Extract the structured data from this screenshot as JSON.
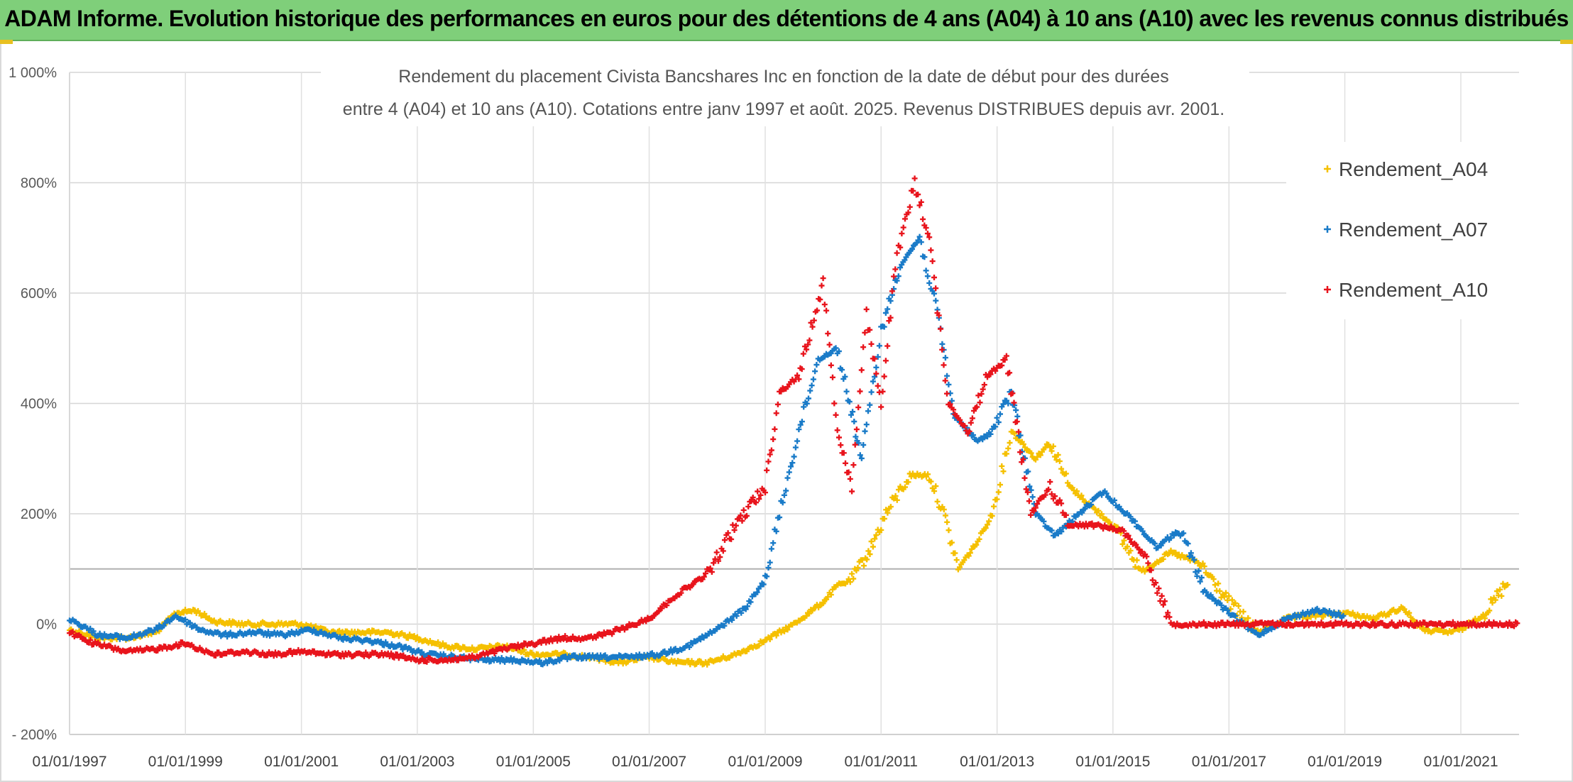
{
  "banner": {
    "title": "ADAM Informe. Evolution historique des performances en euros pour des détentions de 4 ans (A04) à 10 ans (A10) avec les revenus connus distribués"
  },
  "chart_data": {
    "type": "scatter",
    "title_line1": "Rendement du placement Civista Bancshares Inc en fonction de la date de début pour des durées",
    "title_line2": "entre 4 (A04) et 10 ans (A10). Cotations entre janv 1997 et août. 2025. Revenus DISTRIBUES depuis avr. 2001.",
    "xlabel": "",
    "ylabel": "",
    "x_range": [
      "1997-01-01",
      "2022-01-01"
    ],
    "ylim": [
      -200,
      1000
    ],
    "y_ticks": [
      -200,
      0,
      200,
      400,
      600,
      800,
      1000
    ],
    "y_tick_labels": [
      "- 200%",
      "0%",
      "200%",
      "400%",
      "600%",
      "800%",
      "1 000%"
    ],
    "x_ticks": [
      "1997-01-01",
      "1999-01-01",
      "2001-01-01",
      "2003-01-01",
      "2005-01-01",
      "2007-01-01",
      "2009-01-01",
      "2011-01-01",
      "2013-01-01",
      "2015-01-01",
      "2017-01-01",
      "2019-01-01",
      "2021-01-01"
    ],
    "x_tick_labels": [
      "01/01/1997",
      "01/01/1999",
      "01/01/2001",
      "01/01/2003",
      "01/01/2005",
      "01/01/2007",
      "01/01/2009",
      "01/01/2011",
      "01/01/2013",
      "01/01/2015",
      "01/01/2017",
      "01/01/2019",
      "01/01/2021"
    ],
    "reference_line_y": 100,
    "grid": true,
    "legend_position": "top-right",
    "series": [
      {
        "name": "Rendement_A04",
        "color": "#f5c000",
        "x": [
          "1997-01-01",
          "1997-07-01",
          "1998-01-01",
          "1998-07-01",
          "1998-11-01",
          "1999-03-01",
          "1999-07-01",
          "2000-01-01",
          "2000-07-01",
          "2001-01-01",
          "2001-07-01",
          "2002-01-01",
          "2002-07-01",
          "2003-01-01",
          "2003-07-01",
          "2004-01-01",
          "2004-07-01",
          "2005-01-01",
          "2005-07-01",
          "2006-01-01",
          "2006-07-01",
          "2007-01-01",
          "2007-07-01",
          "2008-01-01",
          "2008-07-01",
          "2009-01-01",
          "2009-07-01",
          "2010-01-01",
          "2010-04-01",
          "2010-07-01",
          "2010-11-01",
          "2011-02-01",
          "2011-07-01",
          "2011-11-01",
          "2012-02-01",
          "2012-05-01",
          "2012-09-01",
          "2012-12-01",
          "2013-04-01",
          "2013-09-01",
          "2013-12-01",
          "2014-04-01",
          "2014-09-01",
          "2015-01-01",
          "2015-07-01",
          "2016-01-01",
          "2016-07-01",
          "2017-01-01",
          "2017-07-01",
          "2018-01-01",
          "2018-07-01",
          "2019-01-01",
          "2019-07-01",
          "2020-01-01",
          "2020-05-01",
          "2020-10-01",
          "2021-01-01",
          "2021-06-01",
          "2021-11-01"
        ],
        "y": [
          -10,
          -25,
          -25,
          -15,
          20,
          25,
          5,
          0,
          0,
          0,
          -15,
          -15,
          -15,
          -25,
          -40,
          -45,
          -40,
          -55,
          -55,
          -60,
          -70,
          -60,
          -70,
          -70,
          -55,
          -30,
          0,
          40,
          70,
          80,
          140,
          200,
          270,
          270,
          200,
          100,
          150,
          200,
          350,
          300,
          330,
          250,
          210,
          180,
          95,
          130,
          110,
          40,
          -15,
          10,
          15,
          20,
          10,
          30,
          -10,
          -15,
          -10,
          20,
          80
        ]
      },
      {
        "name": "Rendement_A07",
        "color": "#1a7bc8",
        "x": [
          "1997-01-01",
          "1997-07-01",
          "1998-01-01",
          "1998-07-01",
          "1998-11-01",
          "1999-04-01",
          "1999-09-01",
          "2000-03-01",
          "2000-09-01",
          "2001-03-01",
          "2001-09-01",
          "2002-03-01",
          "2002-09-01",
          "2003-03-01",
          "2003-09-01",
          "2004-03-01",
          "2004-09-01",
          "2005-03-01",
          "2005-09-01",
          "2006-03-01",
          "2006-09-01",
          "2007-03-01",
          "2007-09-01",
          "2008-03-01",
          "2008-09-01",
          "2009-01-01",
          "2009-04-01",
          "2009-08-01",
          "2009-12-01",
          "2010-04-01",
          "2010-09-01",
          "2011-01-01",
          "2011-05-01",
          "2011-09-01",
          "2012-01-01",
          "2012-04-01",
          "2012-09-01",
          "2012-12-01",
          "2013-04-01",
          "2013-09-01",
          "2014-01-01",
          "2014-06-01",
          "2014-11-01",
          "2015-05-01",
          "2015-10-01",
          "2016-03-01",
          "2016-08-01",
          "2017-01-01",
          "2017-07-01",
          "2018-01-01",
          "2018-07-01",
          "2019-01-01"
        ],
        "y": [
          10,
          -20,
          -25,
          -10,
          15,
          -10,
          -20,
          -15,
          -20,
          -10,
          -25,
          -30,
          -40,
          -55,
          -60,
          -65,
          -65,
          -70,
          -60,
          -60,
          -60,
          -55,
          -40,
          -10,
          30,
          80,
          200,
          350,
          480,
          500,
          300,
          530,
          650,
          700,
          550,
          380,
          330,
          350,
          420,
          200,
          160,
          200,
          240,
          190,
          140,
          170,
          60,
          20,
          -20,
          10,
          25,
          15
        ]
      },
      {
        "name": "Rendement_A10",
        "color": "#e8141c",
        "x": [
          "1997-01-01",
          "1997-06-01",
          "1998-01-01",
          "1998-07-01",
          "1999-01-01",
          "1999-07-01",
          "2000-01-01",
          "2000-07-01",
          "2001-01-01",
          "2001-07-01",
          "2002-01-01",
          "2002-07-01",
          "2003-01-01",
          "2003-07-01",
          "2004-01-01",
          "2004-07-01",
          "2005-01-01",
          "2005-07-01",
          "2006-01-01",
          "2006-07-01",
          "2007-01-01",
          "2007-07-01",
          "2008-01-01",
          "2008-07-01",
          "2009-01-01",
          "2009-04-01",
          "2009-08-01",
          "2010-01-01",
          "2010-04-01",
          "2010-07-01",
          "2010-10-01",
          "2011-01-01",
          "2011-04-01",
          "2011-08-01",
          "2011-11-01",
          "2012-03-01",
          "2012-07-01",
          "2012-11-01",
          "2013-03-01",
          "2013-08-01",
          "2013-12-01",
          "2014-04-01",
          "2014-09-01",
          "2015-03-01",
          "2015-08-01",
          "2016-01-01",
          "2017-01-01",
          "2018-01-01",
          "2019-01-01",
          "2020-01-01",
          "2021-01-01",
          "2022-01-01"
        ],
        "y": [
          -15,
          -35,
          -50,
          -45,
          -35,
          -55,
          -50,
          -55,
          -50,
          -55,
          -55,
          -55,
          -65,
          -65,
          -60,
          -45,
          -35,
          -25,
          -25,
          -10,
          10,
          55,
          90,
          180,
          250,
          420,
          450,
          620,
          350,
          250,
          560,
          400,
          650,
          800,
          700,
          400,
          350,
          450,
          480,
          200,
          250,
          180,
          180,
          170,
          120,
          0,
          0,
          0,
          0,
          0,
          0,
          0
        ]
      }
    ]
  }
}
